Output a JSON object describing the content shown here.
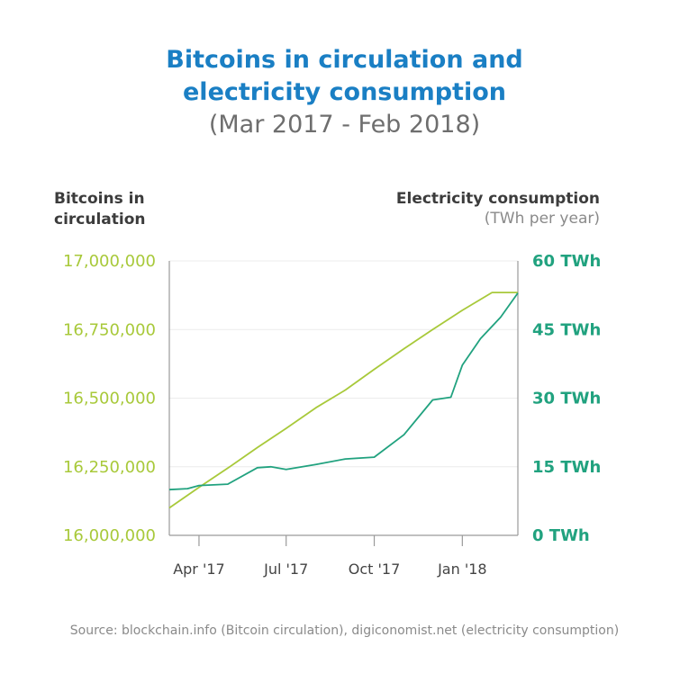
{
  "title_line1": "Bitcoins in circulation and",
  "title_line2": "electricity consumption",
  "subtitle": "(Mar 2017 - Feb 2018)",
  "left_axis_title": [
    "Bitcoins in",
    "circulation"
  ],
  "right_axis_title": "Electricity consumption",
  "right_axis_unit": "(TWh per year)",
  "source": "Source: blockchain.info (Bitcoin circulation), digiconomist.net (electricity consumption)",
  "colors": {
    "bitcoin": "#a8c93a",
    "electricity": "#21a27f",
    "title": "#1a7fc4",
    "axis": "#9a9a9a"
  },
  "chart_data": {
    "type": "line",
    "x_ticks": [
      "Apr '17",
      "Jul '17",
      "Oct '17",
      "Jan '18"
    ],
    "xlim": [
      "2017-03-01",
      "2018-02-28"
    ],
    "y_left": {
      "label": "Bitcoins in circulation",
      "range": [
        16000000,
        17000000
      ],
      "ticks": [
        "16,000,000",
        "16,250,000",
        "16,500,000",
        "16,750,000",
        "17,000,000"
      ]
    },
    "y_right": {
      "label": "Electricity consumption (TWh per year)",
      "range": [
        0,
        60
      ],
      "ticks": [
        "0 TWh",
        "15 TWh",
        "30 TWh",
        "45 TWh",
        "60 TWh"
      ]
    },
    "grid": true,
    "series": [
      {
        "axis": "left",
        "x": [
          "2017-03-01",
          "2017-04-01",
          "2017-05-01",
          "2017-06-01",
          "2017-07-01",
          "2017-08-01",
          "2017-09-01",
          "2017-10-01",
          "2017-11-01",
          "2017-12-01",
          "2018-01-01",
          "2018-02-01",
          "2018-02-28"
        ],
        "y": [
          16100000,
          16175000,
          16245000,
          16320000,
          16390000,
          16465000,
          16530000,
          16605000,
          16680000,
          16750000,
          16820000,
          16885000,
          16885000
        ]
      },
      {
        "axis": "right",
        "x": [
          "2017-03-01",
          "2017-03-20",
          "2017-04-01",
          "2017-05-01",
          "2017-06-01",
          "2017-06-15",
          "2017-07-01",
          "2017-08-01",
          "2017-09-01",
          "2017-10-01",
          "2017-11-01",
          "2017-12-01",
          "2017-12-20",
          "2018-01-01",
          "2018-01-20",
          "2018-02-10",
          "2018-02-28"
        ],
        "y": [
          10.0,
          10.2,
          10.9,
          11.2,
          14.8,
          15.0,
          14.4,
          15.5,
          16.7,
          17.1,
          22.0,
          29.6,
          30.2,
          37.2,
          43.0,
          47.7,
          53.0
        ]
      }
    ]
  }
}
